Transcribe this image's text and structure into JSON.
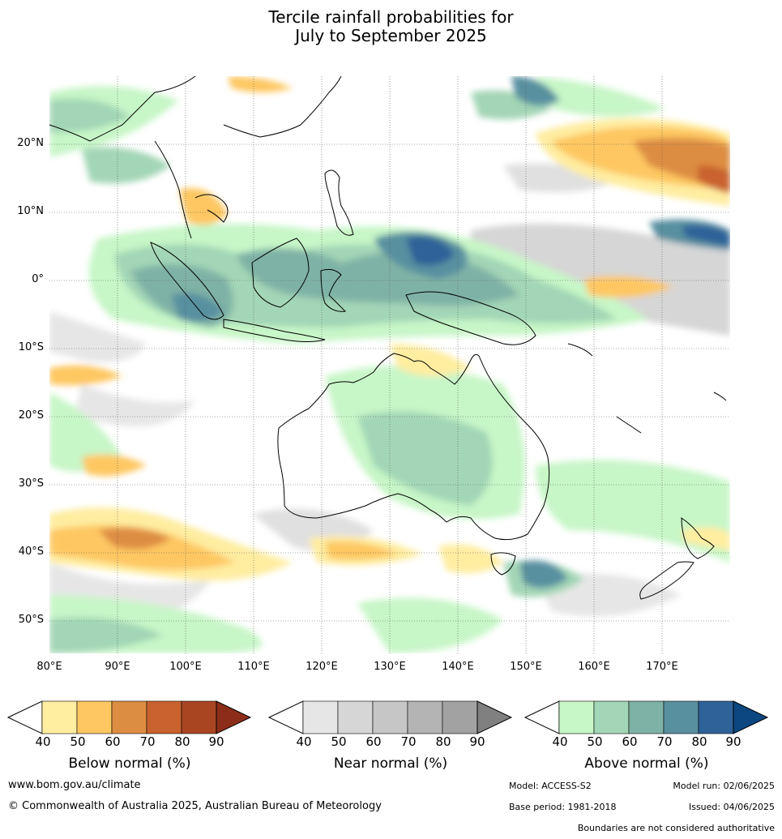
{
  "title": {
    "line1": "Tercile rainfall probabilities for",
    "line2": "July to September 2025"
  },
  "map": {
    "region": "Australia, Indian Ocean, Maritime Continent, western Pacific",
    "gridlines": "dotted",
    "lat_labels": [
      "20°N",
      "10°N",
      "0°",
      "10°S",
      "20°S",
      "30°S",
      "40°S",
      "50°S"
    ],
    "lon_labels": [
      "80°E",
      "90°E",
      "100°E",
      "110°E",
      "120°E",
      "130°E",
      "140°E",
      "150°E",
      "160°E",
      "170°E"
    ]
  },
  "colorbars": [
    {
      "key": "below",
      "label": "Below normal (%)",
      "ticks": [
        "40",
        "50",
        "60",
        "70",
        "80",
        "90"
      ],
      "colors": [
        "#ffffff",
        "#ffeda0",
        "#fec762",
        "#dd8d42",
        "#c9622e",
        "#aa4522",
        "#8c2d19"
      ]
    },
    {
      "key": "near",
      "label": "Near normal (%)",
      "ticks": [
        "40",
        "50",
        "60",
        "70",
        "80",
        "90"
      ],
      "colors": [
        "#ffffff",
        "#e6e6e6",
        "#d6d6d6",
        "#c6c6c6",
        "#b4b4b4",
        "#a2a2a2",
        "#808080"
      ]
    },
    {
      "key": "above",
      "label": "Above normal (%)",
      "ticks": [
        "40",
        "50",
        "60",
        "70",
        "80",
        "90"
      ],
      "colors": [
        "#ffffff",
        "#c7f6c7",
        "#a3d6b6",
        "#7fb2a6",
        "#5990a0",
        "#2e6298",
        "#0c4781"
      ]
    }
  ],
  "footer": {
    "website": "www.bom.gov.au/climate",
    "copyright": "© Commonwealth of Australia 2025, Australian Bureau of Meteorology",
    "model": "Model: ACCESS-S2",
    "model_run": "Model run: 02/06/2025",
    "base_period": "Base period: 1981-2018",
    "issued": "Issued: 04/06/2025",
    "disclaimer": "Boundaries are not considered authoritative"
  }
}
